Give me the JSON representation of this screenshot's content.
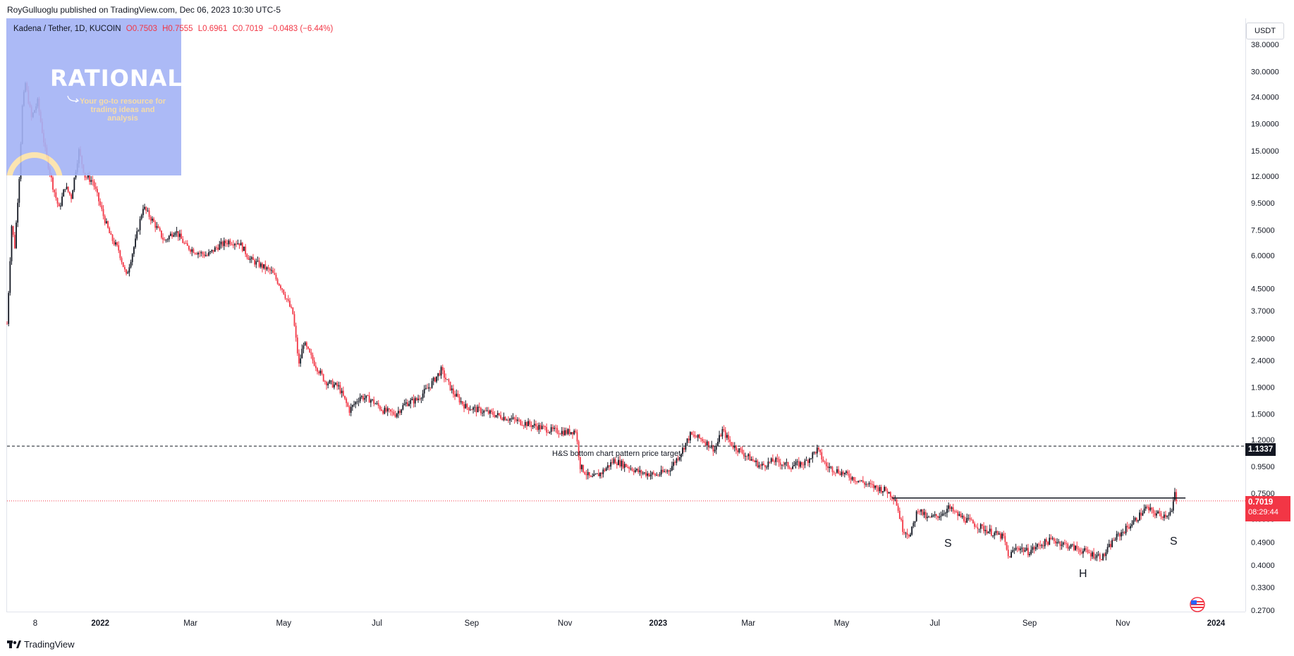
{
  "header": {
    "published": "RoyGulluoglu published on TradingView.com, Dec 06, 2023 10:30 UTC-5"
  },
  "ohlc": {
    "symbol": "Kadena / Tether, 1D, KUCOIN",
    "open": "O0.7503",
    "high": "H0.7555",
    "low": "L0.6961",
    "close": "C0.7019",
    "change": "−0.0483 (−6.44%)"
  },
  "logo": {
    "title": "RATIONALE",
    "subtitle": "Your go-to resource for trading ideas and analysis"
  },
  "price_axis": {
    "currency": "USDT",
    "target_badge": "1.1337",
    "last_badge": "0.7019",
    "timer": "08:29:44"
  },
  "annotations": {
    "target_label": "H&S bottom chart pattern price target",
    "left_shoulder": "S",
    "head": "H",
    "right_shoulder": "S"
  },
  "footer": {
    "brand": "TradingView"
  },
  "colors": {
    "up": "#131722",
    "down": "#f23645",
    "target_line": "#131722",
    "last_price_line": "#f23645",
    "neckline": "#131722"
  },
  "chart_data": {
    "type": "candlestick",
    "yscale": "log",
    "ylim": [
      0.27,
      38.0
    ],
    "y_ticks": [
      "38.0000",
      "30.0000",
      "24.0000",
      "19.0000",
      "15.0000",
      "12.0000",
      "9.5000",
      "7.5000",
      "6.0000",
      "4.5000",
      "3.7000",
      "2.9000",
      "2.4000",
      "1.9000",
      "1.5000",
      "1.2000",
      "0.9500",
      "0.7500",
      "0.6000",
      "0.4900",
      "0.4000",
      "0.3300",
      "0.2700"
    ],
    "x_ticks": [
      "8",
      "2022",
      "Mar",
      "May",
      "Jul",
      "Sep",
      "Nov",
      "2023",
      "Mar",
      "May",
      "Jul",
      "Sep",
      "Nov",
      "2024"
    ],
    "x_range": [
      "2021-11-01",
      "2024-01-10"
    ],
    "target_price": 1.1337,
    "last_price": 0.7019,
    "neckline_price": 0.72,
    "neckline_range": [
      "2023-06-03",
      "2023-12-12"
    ],
    "path": [
      [
        "2021-11-01",
        3.3
      ],
      [
        "2021-11-04",
        7.8
      ],
      [
        "2021-11-06",
        6.5
      ],
      [
        "2021-11-09",
        12
      ],
      [
        "2021-11-11",
        22
      ],
      [
        "2021-11-13",
        27
      ],
      [
        "2021-11-17",
        20
      ],
      [
        "2021-11-21",
        23
      ],
      [
        "2021-11-26",
        15
      ],
      [
        "2021-12-01",
        11
      ],
      [
        "2021-12-05",
        9
      ],
      [
        "2021-12-09",
        11
      ],
      [
        "2021-12-13",
        10
      ],
      [
        "2021-12-18",
        15
      ],
      [
        "2021-12-22",
        12
      ],
      [
        "2021-12-27",
        11.5
      ],
      [
        "2022-01-03",
        8.5
      ],
      [
        "2022-01-08",
        7.0
      ],
      [
        "2022-01-13",
        6.3
      ],
      [
        "2022-01-18",
        5.0
      ],
      [
        "2022-01-24",
        6.8
      ],
      [
        "2022-01-29",
        9.2
      ],
      [
        "2022-02-05",
        8.0
      ],
      [
        "2022-02-12",
        6.8
      ],
      [
        "2022-02-19",
        7.5
      ],
      [
        "2022-02-26",
        6.5
      ],
      [
        "2022-03-05",
        6.2
      ],
      [
        "2022-03-12",
        6.0
      ],
      [
        "2022-03-19",
        6.5
      ],
      [
        "2022-03-26",
        6.8
      ],
      [
        "2022-04-02",
        6.7
      ],
      [
        "2022-04-09",
        5.8
      ],
      [
        "2022-04-16",
        5.5
      ],
      [
        "2022-04-23",
        5.2
      ],
      [
        "2022-04-30",
        4.5
      ],
      [
        "2022-05-07",
        3.6
      ],
      [
        "2022-05-11",
        2.3
      ],
      [
        "2022-05-14",
        2.8
      ],
      [
        "2022-05-20",
        2.4
      ],
      [
        "2022-05-28",
        2.0
      ],
      [
        "2022-06-06",
        1.9
      ],
      [
        "2022-06-13",
        1.55
      ],
      [
        "2022-06-20",
        1.75
      ],
      [
        "2022-06-27",
        1.7
      ],
      [
        "2022-07-05",
        1.55
      ],
      [
        "2022-07-13",
        1.5
      ],
      [
        "2022-07-20",
        1.65
      ],
      [
        "2022-07-27",
        1.7
      ],
      [
        "2022-08-04",
        1.9
      ],
      [
        "2022-08-12",
        2.2
      ],
      [
        "2022-08-20",
        1.8
      ],
      [
        "2022-08-28",
        1.6
      ],
      [
        "2022-09-06",
        1.55
      ],
      [
        "2022-09-15",
        1.5
      ],
      [
        "2022-09-24",
        1.45
      ],
      [
        "2022-10-03",
        1.4
      ],
      [
        "2022-10-13",
        1.35
      ],
      [
        "2022-10-23",
        1.3
      ],
      [
        "2022-11-02",
        1.28
      ],
      [
        "2022-11-08",
        1.3
      ],
      [
        "2022-11-11",
        0.95
      ],
      [
        "2022-11-18",
        0.85
      ],
      [
        "2022-11-25",
        0.9
      ],
      [
        "2022-12-03",
        1.0
      ],
      [
        "2022-12-12",
        0.95
      ],
      [
        "2022-12-20",
        0.9
      ],
      [
        "2022-12-31",
        0.88
      ],
      [
        "2023-01-08",
        0.92
      ],
      [
        "2023-01-15",
        1.05
      ],
      [
        "2023-01-22",
        1.25
      ],
      [
        "2023-01-30",
        1.2
      ],
      [
        "2023-02-07",
        1.1
      ],
      [
        "2023-02-12",
        1.3
      ],
      [
        "2023-02-18",
        1.15
      ],
      [
        "2023-02-27",
        1.05
      ],
      [
        "2023-03-09",
        0.95
      ],
      [
        "2023-03-18",
        1.0
      ],
      [
        "2023-03-28",
        0.95
      ],
      [
        "2023-04-07",
        0.98
      ],
      [
        "2023-04-15",
        1.1
      ],
      [
        "2023-04-21",
        0.95
      ],
      [
        "2023-05-01",
        0.9
      ],
      [
        "2023-05-10",
        0.85
      ],
      [
        "2023-05-20",
        0.8
      ],
      [
        "2023-05-30",
        0.77
      ],
      [
        "2023-06-05",
        0.72
      ],
      [
        "2023-06-10",
        0.55
      ],
      [
        "2023-06-15",
        0.52
      ],
      [
        "2023-06-20",
        0.66
      ],
      [
        "2023-06-26",
        0.6
      ],
      [
        "2023-07-04",
        0.62
      ],
      [
        "2023-07-10",
        0.66
      ],
      [
        "2023-07-16",
        0.62
      ],
      [
        "2023-07-25",
        0.58
      ],
      [
        "2023-08-05",
        0.54
      ],
      [
        "2023-08-15",
        0.51
      ],
      [
        "2023-08-18",
        0.43
      ],
      [
        "2023-08-24",
        0.47
      ],
      [
        "2023-08-31",
        0.45
      ],
      [
        "2023-09-08",
        0.48
      ],
      [
        "2023-09-16",
        0.5
      ],
      [
        "2023-09-24",
        0.48
      ],
      [
        "2023-10-03",
        0.46
      ],
      [
        "2023-10-12",
        0.44
      ],
      [
        "2023-10-19",
        0.43
      ],
      [
        "2023-10-26",
        0.5
      ],
      [
        "2023-11-03",
        0.55
      ],
      [
        "2023-11-10",
        0.6
      ],
      [
        "2023-11-16",
        0.66
      ],
      [
        "2023-11-22",
        0.63
      ],
      [
        "2023-11-28",
        0.62
      ],
      [
        "2023-12-03",
        0.64
      ],
      [
        "2023-12-05",
        0.75
      ],
      [
        "2023-12-06",
        0.7019
      ]
    ]
  }
}
